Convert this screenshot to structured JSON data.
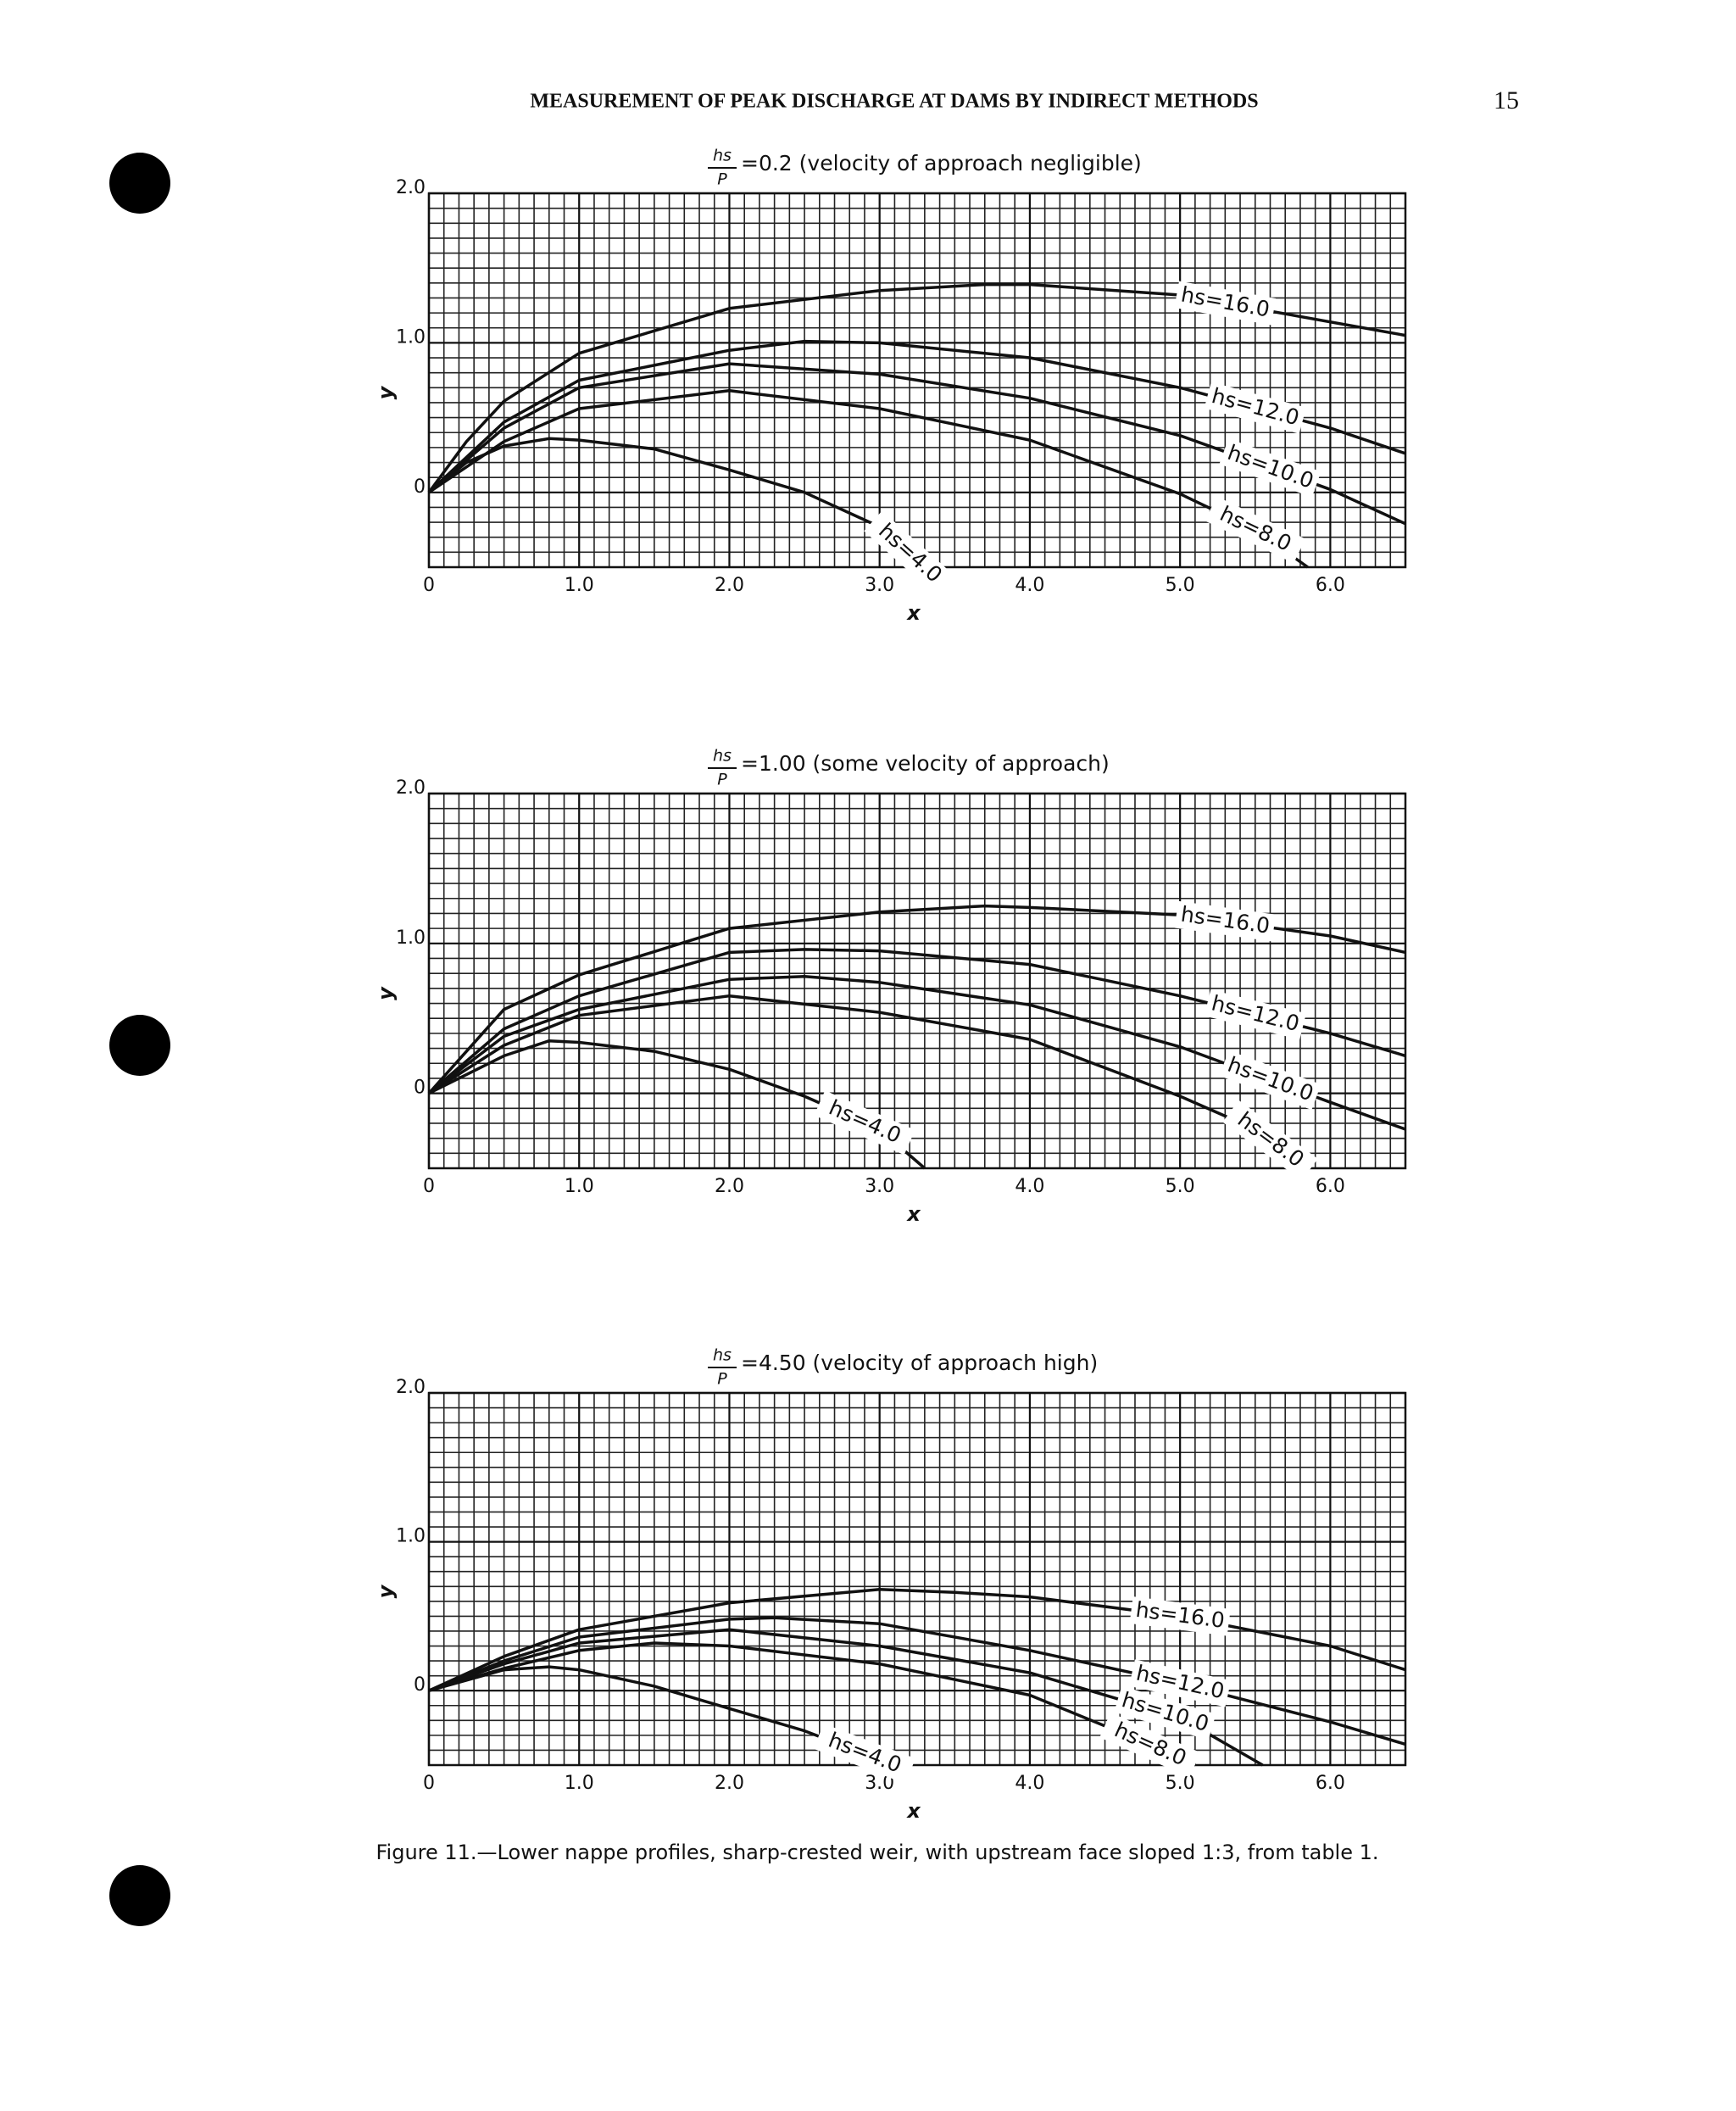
{
  "header": {
    "title": "MEASUREMENT OF PEAK DISCHARGE AT DAMS BY INDIRECT METHODS",
    "page_number": "15"
  },
  "caption": "Figure 11.—Lower nappe profiles, sharp-crested weir, with upstream face sloped 1:3, from table 1.",
  "chart_data": [
    {
      "type": "line",
      "title_fraction": {
        "numerator": "hs",
        "denominator": "P"
      },
      "title": "=0.2 (velocity of approach negligible)",
      "xlabel": "x",
      "ylabel": "y",
      "xlim": [
        0,
        6.5
      ],
      "ylim": [
        -0.5,
        2.0
      ],
      "xticks": [
        0,
        {
          "value": 1,
          "label": "1.0"
        },
        {
          "value": 2,
          "label": "2.0"
        },
        {
          "value": 3,
          "label": "3.0"
        },
        {
          "value": 4,
          "label": "4.0"
        },
        {
          "value": 5,
          "label": "5.0"
        },
        {
          "value": 6,
          "label": "6.0"
        }
      ],
      "yticks": [
        0,
        {
          "value": 1,
          "label": "1.0"
        },
        {
          "value": 2,
          "label": "2.0"
        }
      ],
      "grid": true,
      "minor_grid_step": 0.1,
      "series": [
        {
          "name": "hs=16.0",
          "color": "#111111",
          "x": [
            0,
            0.25,
            0.5,
            1.0,
            2.0,
            3.0,
            3.7,
            4.0,
            5.0,
            6.5
          ],
          "values": [
            0,
            0.34,
            0.61,
            0.93,
            1.23,
            1.35,
            1.39,
            1.39,
            1.32,
            1.05
          ]
        },
        {
          "name": "hs=12.0",
          "color": "#111111",
          "x": [
            0,
            0.5,
            1.0,
            2.0,
            2.5,
            3.0,
            4.0,
            5.0,
            6.0,
            6.5
          ],
          "values": [
            0,
            0.47,
            0.75,
            0.95,
            1.01,
            1.0,
            0.9,
            0.7,
            0.43,
            0.26
          ]
        },
        {
          "name": "hs=10.0",
          "color": "#111111",
          "x": [
            0,
            0.5,
            1.0,
            2.0,
            3.0,
            4.0,
            5.0,
            6.0,
            6.5
          ],
          "values": [
            0,
            0.43,
            0.7,
            0.86,
            0.79,
            0.63,
            0.38,
            0.02,
            -0.21
          ]
        },
        {
          "name": "hs=8.0",
          "color": "#111111",
          "x": [
            0,
            0.5,
            1.0,
            2.0,
            3.0,
            4.0,
            5.0,
            5.5,
            5.85
          ],
          "values": [
            0,
            0.34,
            0.56,
            0.68,
            0.56,
            0.35,
            -0.01,
            -0.25,
            -0.5
          ]
        },
        {
          "name": "hs=4.0",
          "color": "#111111",
          "x": [
            0,
            0.25,
            0.5,
            0.8,
            1.0,
            1.5,
            2.0,
            2.5,
            3.0,
            3.3
          ],
          "values": [
            0,
            0.2,
            0.31,
            0.36,
            0.35,
            0.29,
            0.15,
            0,
            -0.23,
            -0.5
          ]
        }
      ]
    },
    {
      "type": "line",
      "title_fraction": {
        "numerator": "hs",
        "denominator": "P"
      },
      "title": "=1.00 (some velocity of approach)",
      "xlabel": "x",
      "ylabel": "y",
      "xlim": [
        0,
        6.5
      ],
      "ylim": [
        -0.5,
        2.0
      ],
      "xticks": [
        0,
        {
          "value": 1,
          "label": "1.0"
        },
        {
          "value": 2,
          "label": "2.0"
        },
        {
          "value": 3,
          "label": "3.0"
        },
        {
          "value": 4,
          "label": "4.0"
        },
        {
          "value": 5,
          "label": "5.0"
        },
        {
          "value": 6,
          "label": "6.0"
        }
      ],
      "yticks": [
        0,
        {
          "value": 1,
          "label": "1.0"
        },
        {
          "value": 2,
          "label": "2.0"
        }
      ],
      "grid": true,
      "minor_grid_step": 0.1,
      "series": [
        {
          "name": "hs=16.0",
          "color": "#111111",
          "x": [
            0,
            0.5,
            1.0,
            2.0,
            3.0,
            3.7,
            4.0,
            5.0,
            6.0,
            6.5
          ],
          "values": [
            0,
            0.56,
            0.79,
            1.1,
            1.21,
            1.25,
            1.24,
            1.19,
            1.05,
            0.94
          ]
        },
        {
          "name": "hs=12.0",
          "color": "#111111",
          "x": [
            0,
            0.5,
            1.0,
            2.0,
            2.5,
            3.0,
            4.0,
            5.0,
            6.0,
            6.5
          ],
          "values": [
            0,
            0.43,
            0.65,
            0.94,
            0.96,
            0.95,
            0.86,
            0.65,
            0.4,
            0.25
          ]
        },
        {
          "name": "hs=10.0",
          "color": "#111111",
          "x": [
            0,
            0.5,
            1.0,
            2.0,
            2.5,
            3.0,
            4.0,
            5.0,
            6.0,
            6.5
          ],
          "values": [
            0,
            0.38,
            0.56,
            0.76,
            0.78,
            0.74,
            0.59,
            0.31,
            -0.06,
            -0.24
          ]
        },
        {
          "name": "hs=8.0",
          "color": "#111111",
          "x": [
            0,
            0.5,
            1.0,
            2.0,
            3.0,
            4.0,
            5.0,
            5.5,
            5.85
          ],
          "values": [
            0,
            0.32,
            0.52,
            0.65,
            0.54,
            0.36,
            -0.02,
            -0.24,
            -0.5
          ]
        },
        {
          "name": "hs=4.0",
          "color": "#111111",
          "x": [
            0,
            0.5,
            0.8,
            1.0,
            1.5,
            2.0,
            2.5,
            3.0,
            3.3
          ],
          "values": [
            0,
            0.25,
            0.35,
            0.34,
            0.28,
            0.16,
            -0.02,
            -0.24,
            -0.5
          ]
        }
      ]
    },
    {
      "type": "line",
      "title_fraction": {
        "numerator": "hs",
        "denominator": "P"
      },
      "title": "=4.50 (velocity of approach high)",
      "xlabel": "x",
      "ylabel": "y",
      "xlim": [
        0,
        6.5
      ],
      "ylim": [
        -0.5,
        2.0
      ],
      "xticks": [
        0,
        {
          "value": 1,
          "label": "1.0"
        },
        {
          "value": 2,
          "label": "2.0"
        },
        {
          "value": 3,
          "label": "3.0"
        },
        {
          "value": 4,
          "label": "4.0"
        },
        {
          "value": 5,
          "label": "5.0"
        },
        {
          "value": 6,
          "label": "6.0"
        }
      ],
      "yticks": [
        0,
        {
          "value": 1,
          "label": "1.0"
        },
        {
          "value": 2,
          "label": "2.0"
        }
      ],
      "grid": true,
      "minor_grid_step": 0.1,
      "series": [
        {
          "name": "hs=16.0",
          "color": "#111111",
          "x": [
            0,
            0.5,
            1.0,
            2.0,
            3.0,
            3.5,
            4.0,
            5.0,
            6.0,
            6.5
          ],
          "values": [
            0,
            0.23,
            0.41,
            0.59,
            0.68,
            0.66,
            0.63,
            0.5,
            0.3,
            0.14
          ]
        },
        {
          "name": "hs=12.0",
          "color": "#111111",
          "x": [
            0,
            0.5,
            1.0,
            2.0,
            2.3,
            3.0,
            4.0,
            5.0,
            6.0,
            6.5
          ],
          "values": [
            0,
            0.2,
            0.36,
            0.48,
            0.49,
            0.45,
            0.27,
            0.05,
            -0.21,
            -0.36
          ]
        },
        {
          "name": "hs=10.0",
          "color": "#111111",
          "x": [
            0,
            0.5,
            1.0,
            2.0,
            3.0,
            4.0,
            5.0,
            5.55
          ],
          "values": [
            0,
            0.18,
            0.32,
            0.41,
            0.3,
            0.12,
            -0.18,
            -0.5
          ]
        },
        {
          "name": "hs=8.0",
          "color": "#111111",
          "x": [
            0,
            0.5,
            1.0,
            1.5,
            2.0,
            3.0,
            4.0,
            4.7,
            5.1
          ],
          "values": [
            0,
            0.15,
            0.27,
            0.32,
            0.3,
            0.18,
            -0.03,
            -0.32,
            -0.5
          ]
        },
        {
          "name": "hs=4.0",
          "color": "#111111",
          "x": [
            0,
            0.5,
            0.8,
            1.0,
            1.5,
            2.0,
            2.5,
            3.1
          ],
          "values": [
            0,
            0.14,
            0.16,
            0.14,
            0.03,
            -0.12,
            -0.27,
            -0.5
          ]
        }
      ]
    }
  ]
}
